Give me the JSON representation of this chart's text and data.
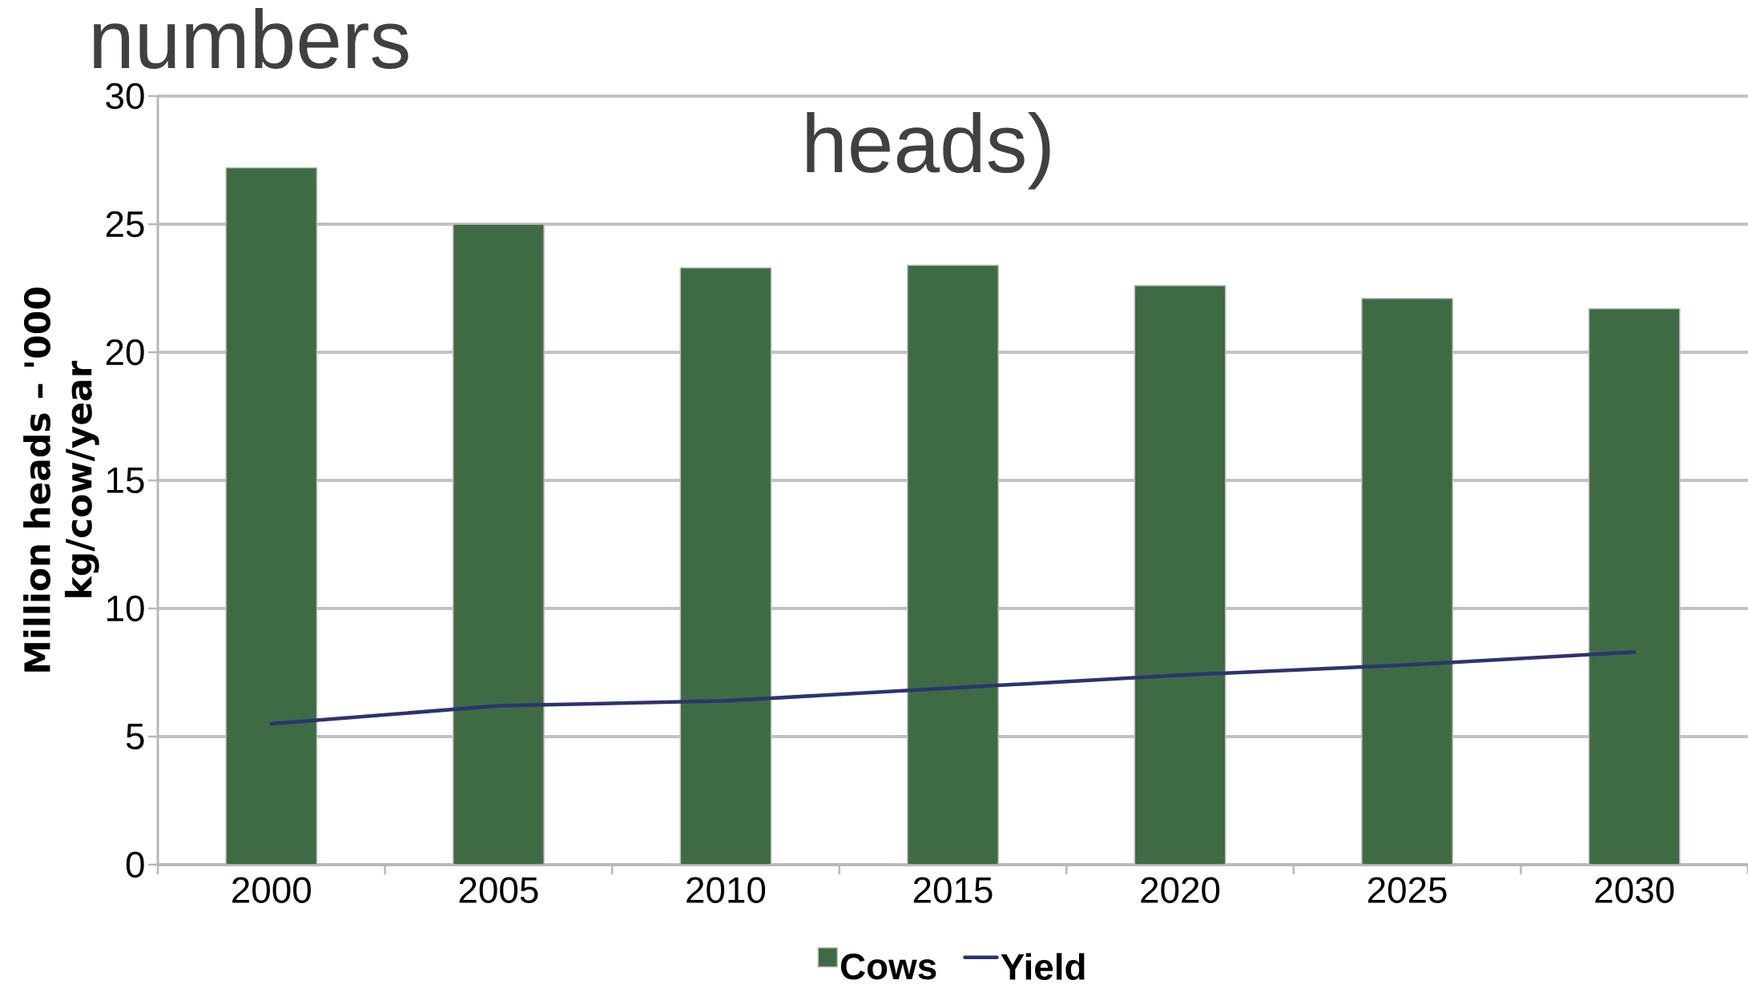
{
  "chart_data": {
    "type": "bar",
    "categories": [
      "2000",
      "2005",
      "2010",
      "2015",
      "2020",
      "2025",
      "2030"
    ],
    "series": [
      {
        "name": "Cows",
        "color": "#3e6b44",
        "values": [
          27.2,
          25.0,
          23.3,
          23.4,
          22.6,
          22.1,
          21.7
        ]
      },
      {
        "name": "Yield",
        "type": "line",
        "color": "#2b3470",
        "values": [
          5.5,
          6.2,
          6.4,
          6.9,
          7.4,
          7.8,
          8.3
        ]
      }
    ],
    "ylabel": "Million heads – '000 kg/cow/year",
    "ylim": [
      0,
      30
    ],
    "yticks": [
      0,
      5,
      10,
      15,
      20,
      25,
      30
    ],
    "grid": "y",
    "legend": "bottom",
    "annotations": [
      "numbers",
      "heads)"
    ]
  }
}
